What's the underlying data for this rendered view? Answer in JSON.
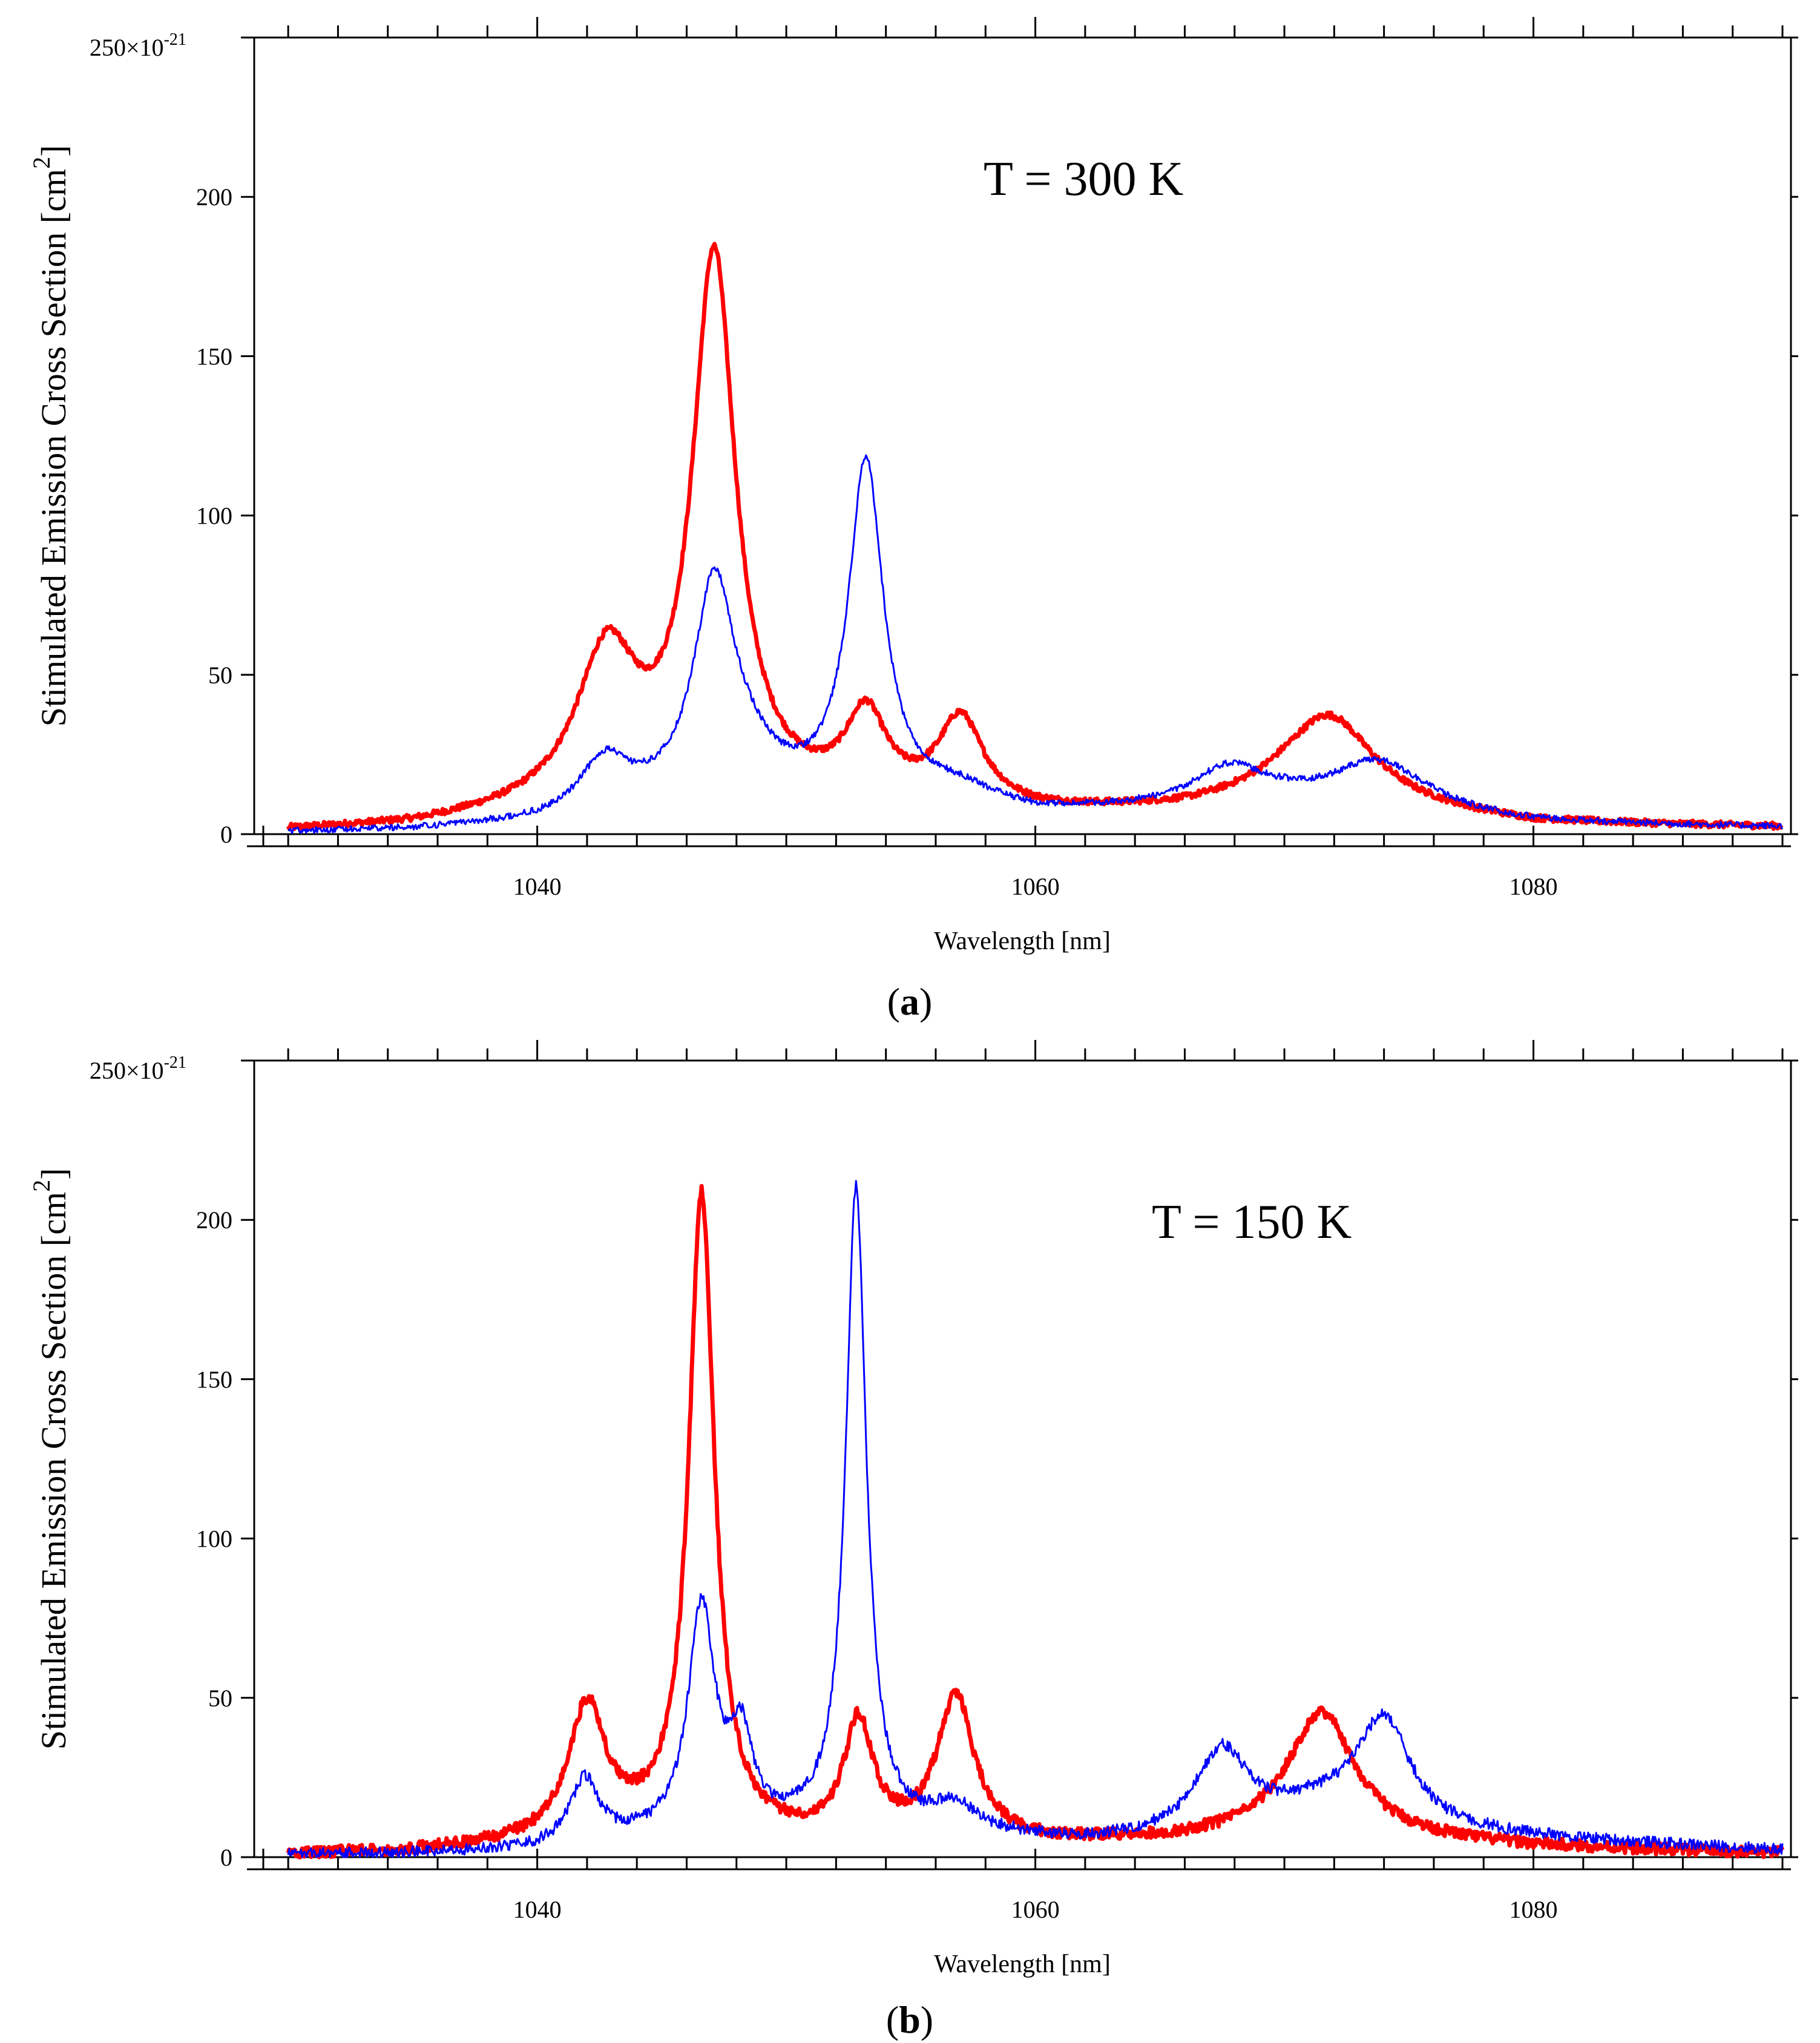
{
  "chart_data": [
    {
      "type": "line",
      "panel": "a",
      "caption_letter": "a",
      "annotation": "T = 300 K",
      "xlabel": "Wavelength [nm]",
      "ylabel": "Stimulated Emission Cross Section [cm",
      "ylabel_exp": "2",
      "ylabel_close": "]",
      "y_scale_label": "250×10",
      "y_scale_exp": "-21",
      "xlim": [
        1029,
        1090
      ],
      "ylim": [
        0,
        250
      ],
      "xticks": [
        1040,
        1060,
        1080
      ],
      "yticks": [
        0,
        50,
        100,
        150,
        200
      ],
      "series": [
        {
          "name": "red",
          "color": "#ff0000",
          "width": 7,
          "peaks": [
            [
              1042.8,
              47,
              1.5
            ],
            [
              1047.1,
              170,
              1.05
            ],
            [
              1053.2,
              26,
              1.0
            ],
            [
              1057.0,
              27,
              1.1
            ],
            [
              1071.8,
              28,
              2.2
            ]
          ],
          "baseline": [
            [
              1029,
              0.5
            ],
            [
              1035,
              2
            ],
            [
              1040,
              6
            ],
            [
              1049,
              9
            ],
            [
              1060,
              6
            ],
            [
              1066,
              7
            ],
            [
              1070,
              10
            ],
            [
              1080,
              3
            ],
            [
              1090,
              2
            ]
          ]
        },
        {
          "name": "blue",
          "color": "#0000ff",
          "width": 3,
          "peaks": [
            [
              1042.7,
              16,
              1.2
            ],
            [
              1047.1,
              66,
              1.0
            ],
            [
              1048.4,
              10,
              1.5
            ],
            [
              1053.2,
              106,
              0.85
            ],
            [
              1056.8,
              4,
              1.5
            ],
            [
              1067.8,
              12,
              1.8
            ],
            [
              1073.8,
              16,
              2.4
            ]
          ],
          "baseline": [
            [
              1029,
              0.5
            ],
            [
              1035,
              1
            ],
            [
              1040,
              3
            ],
            [
              1045,
              8
            ],
            [
              1052,
              9
            ],
            [
              1058,
              8
            ],
            [
              1060,
              6
            ],
            [
              1070,
              8
            ],
            [
              1080,
              3
            ],
            [
              1090,
              2
            ]
          ]
        }
      ]
    },
    {
      "type": "line",
      "panel": "b",
      "caption_letter": "b",
      "annotation": "T = 150 K",
      "xlabel": "Wavelength [nm]",
      "ylabel": "Stimulated Emission Cross Section [cm",
      "ylabel_exp": "2",
      "ylabel_close": "]",
      "y_scale_label": "250×10",
      "y_scale_exp": "-21",
      "xlim": [
        1029,
        1090
      ],
      "ylim": [
        0,
        250
      ],
      "xticks": [
        1040,
        1060,
        1080
      ],
      "yticks": [
        0,
        50,
        100,
        150,
        200
      ],
      "series": [
        {
          "name": "red",
          "color": "#ff0000",
          "width": 7,
          "peaks": [
            [
              1042.0,
              41,
              0.9
            ],
            [
              1046.6,
              200,
              0.62
            ],
            [
              1052.9,
              36,
              0.7
            ],
            [
              1056.8,
              45,
              0.9
            ],
            [
              1071.5,
              39,
              1.6
            ]
          ],
          "baseline": [
            [
              1029,
              0.5
            ],
            [
              1035,
              1.5
            ],
            [
              1040,
              4
            ],
            [
              1045,
              7
            ],
            [
              1050,
              5
            ],
            [
              1060,
              4
            ],
            [
              1066,
              5
            ],
            [
              1070,
              7
            ],
            [
              1080,
              3
            ],
            [
              1090,
              1
            ]
          ]
        },
        {
          "name": "blue",
          "color": "#0000ff",
          "width": 3,
          "peaks": [
            [
              1041.9,
              20,
              0.7
            ],
            [
              1046.6,
              71,
              0.65
            ],
            [
              1048.2,
              27,
              0.55
            ],
            [
              1052.8,
              201,
              0.5
            ],
            [
              1056.8,
              8,
              1.0
            ],
            [
              1067.5,
              26,
              1.3
            ],
            [
              1074.0,
              34,
              1.3
            ],
            [
              1071.5,
              8,
              2.5
            ]
          ],
          "baseline": [
            [
              1029,
              0.5
            ],
            [
              1035,
              1
            ],
            [
              1040,
              2
            ],
            [
              1044,
              5
            ],
            [
              1051,
              8
            ],
            [
              1056,
              7
            ],
            [
              1062,
              4
            ],
            [
              1070,
              6
            ],
            [
              1078,
              6
            ],
            [
              1090,
              2
            ]
          ]
        }
      ]
    }
  ]
}
